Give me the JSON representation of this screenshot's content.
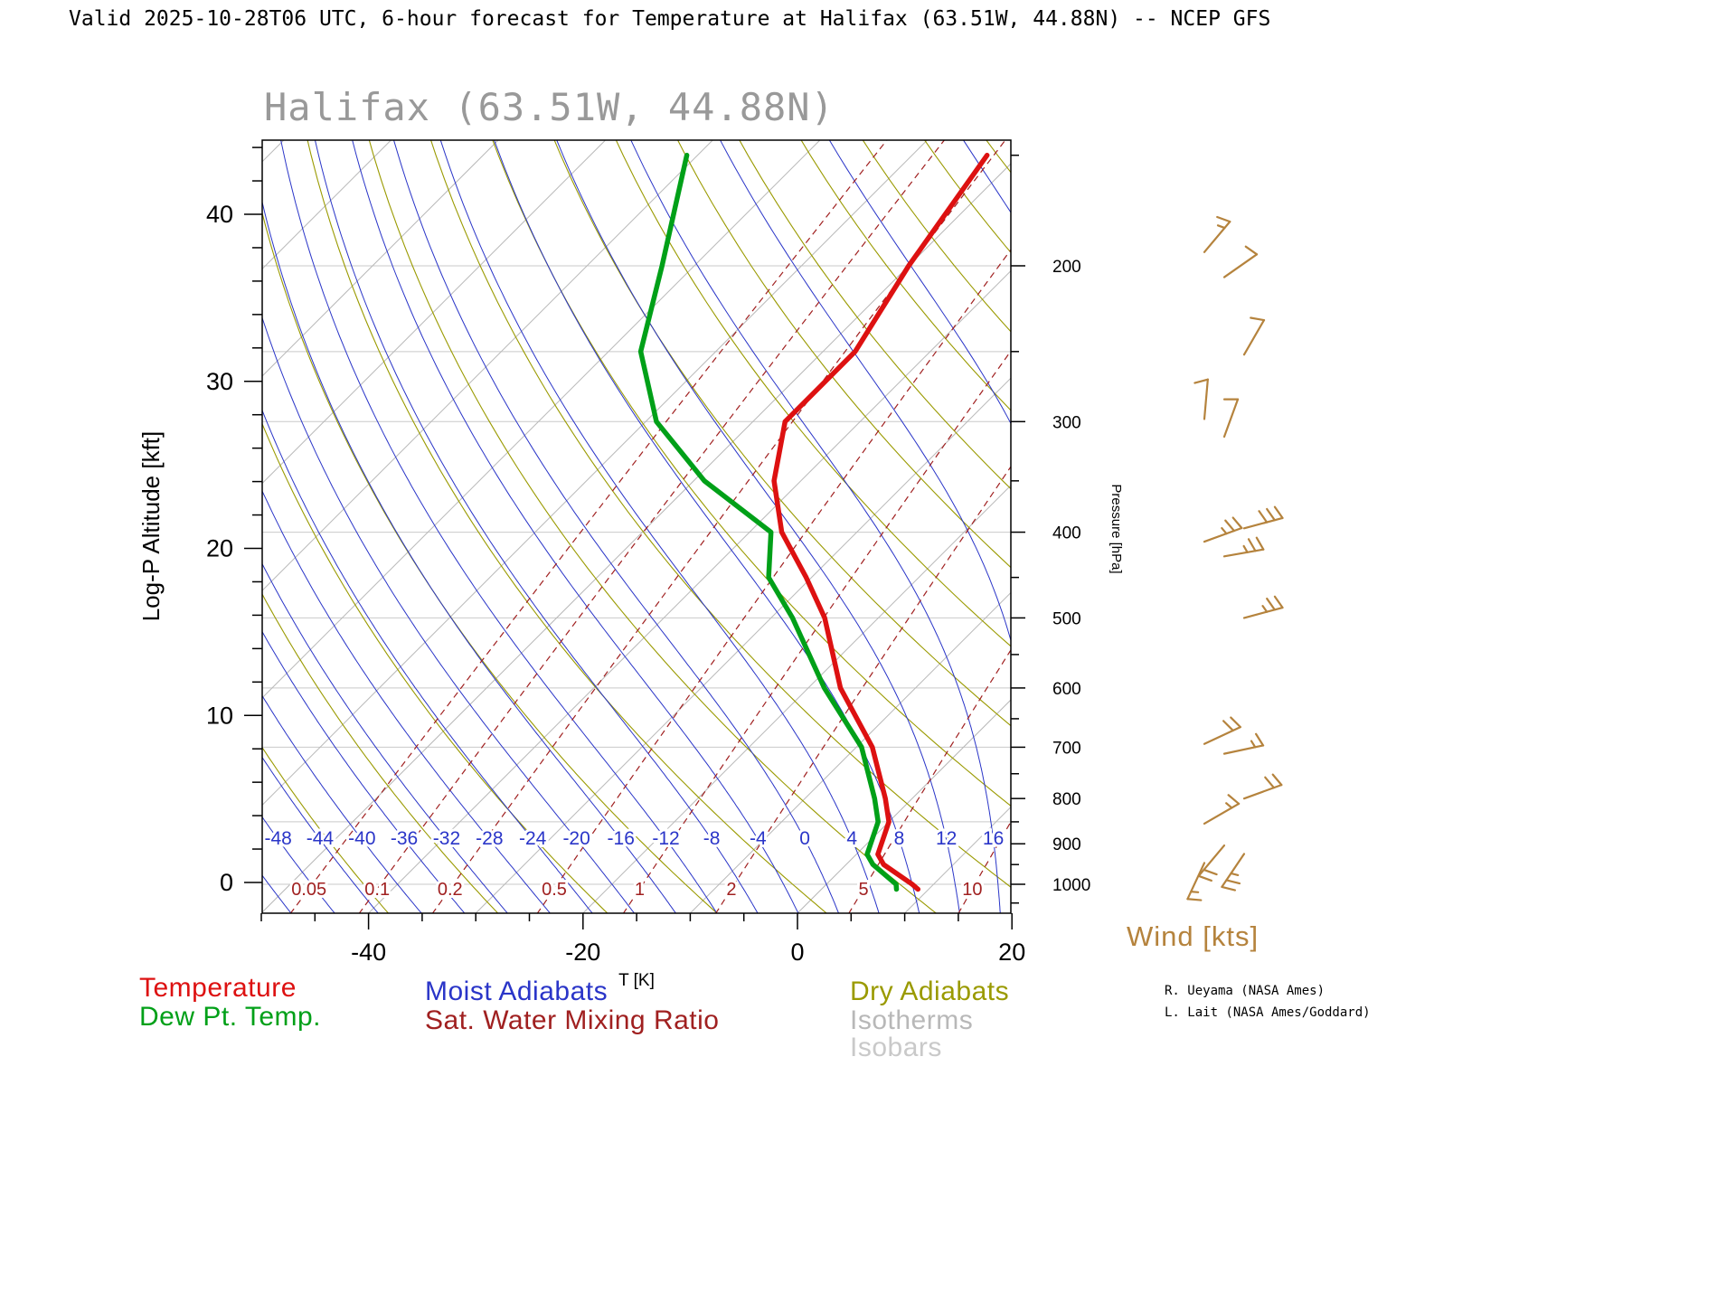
{
  "header_title": "Valid 2025-10-28T06 UTC, 6-hour forecast for Temperature at Halifax (63.51W, 44.88N) -- NCEP GFS",
  "chart_title": "Halifax (63.51W, 44.88N)",
  "axes": {
    "left_label": "Log-P Altitude [kft]",
    "left_ticks_kft": [
      0,
      10,
      20,
      30,
      40
    ],
    "right_label": "Pressure [hPa]",
    "right_ticks_hpa": [
      200,
      300,
      400,
      500,
      600,
      700,
      800,
      900,
      1000
    ],
    "bottom_label": "T [K]",
    "bottom_ticks": [
      -40,
      -20,
      0,
      20
    ]
  },
  "legend": {
    "temperature": "Temperature",
    "dew_point": "Dew Pt. Temp.",
    "moist_adiabats": "Moist Adiabats",
    "sat_water_mixing_ratio": "Sat. Water Mixing Ratio",
    "dry_adiabats": "Dry Adiabats",
    "isotherms": "Isotherms",
    "isobars": "Isobars"
  },
  "wind_title": "Wind [kts]",
  "credits": {
    "line1": "R. Ueyama (NASA Ames)",
    "line2": "L. Lait (NASA Ames/Goddard)"
  },
  "colors": {
    "temperature": "#dd1111",
    "dew_point": "#00a018",
    "moist_adiabat": "#2a35c8",
    "mixing_ratio": "#a02020",
    "dry_adiabat": "#9a9a00",
    "isotherm": "#b8b8b8",
    "isobar": "#c9c9c9",
    "wind_barb": "#b5833d",
    "title_gray": "#999999",
    "axis_black": "#000000"
  },
  "chart_data": {
    "type": "line",
    "title": "Halifax (63.51W, 44.88N)",
    "subtitle": "Skew-T / Log-P sounding, 6-hour GFS forecast valid 2025-10-28T06 UTC",
    "x_axis": {
      "label": "T [K]",
      "ticks": [
        -40,
        -20,
        0,
        20
      ],
      "surface_range_c": [
        -50,
        20
      ]
    },
    "y_axis_left": {
      "label": "Log-P Altitude [kft]",
      "ticks": [
        0,
        10,
        20,
        30,
        40
      ],
      "range_kft": [
        -1.8,
        44.4
      ]
    },
    "y_axis_right": {
      "label": "Pressure [hPa]",
      "ticks": [
        200,
        300,
        400,
        500,
        600,
        700,
        800,
        900,
        1000
      ],
      "range_hpa": [
        145,
        1078
      ],
      "scale": "log"
    },
    "isobar_lines_hpa": [
      1000,
      850,
      700,
      600,
      500,
      400,
      300,
      250,
      200
    ],
    "isotherm_interval_c": 10,
    "dry_adiabat_interval_k": 10,
    "moist_adiabat_labels_c": [
      -48,
      -44,
      -40,
      -36,
      -32,
      -28,
      -24,
      -20,
      -16,
      -12,
      -8,
      -4,
      0,
      4,
      8,
      12,
      16
    ],
    "mixing_ratio_labels_gkg": [
      0.05,
      0.1,
      0.2,
      0.5,
      1,
      2,
      5,
      10
    ],
    "series": [
      {
        "name": "Temperature",
        "units": "degC",
        "points_p_t": [
          [
            1013,
            9
          ],
          [
            1000,
            8
          ],
          [
            950,
            3.5
          ],
          [
            925,
            2
          ],
          [
            850,
            0
          ],
          [
            800,
            -2.5
          ],
          [
            700,
            -8.5
          ],
          [
            600,
            -17
          ],
          [
            500,
            -25
          ],
          [
            450,
            -30.5
          ],
          [
            400,
            -37
          ],
          [
            350,
            -42.5
          ],
          [
            300,
            -47
          ],
          [
            250,
            -47
          ],
          [
            200,
            -50
          ],
          [
            150,
            -53
          ]
        ]
      },
      {
        "name": "Dew Pt. Temp.",
        "units": "degC",
        "points_p_t": [
          [
            1013,
            7
          ],
          [
            1000,
            6.5
          ],
          [
            950,
            2.5
          ],
          [
            925,
            1
          ],
          [
            850,
            -1
          ],
          [
            800,
            -3.5
          ],
          [
            700,
            -9.5
          ],
          [
            600,
            -18.5
          ],
          [
            500,
            -28
          ],
          [
            450,
            -34
          ],
          [
            400,
            -38
          ],
          [
            350,
            -49
          ],
          [
            300,
            -59
          ],
          [
            250,
            -67
          ],
          [
            200,
            -73
          ],
          [
            150,
            -81
          ]
        ]
      }
    ],
    "winds_estimated": [
      {
        "p": 193,
        "kts": 15,
        "dir_from_deg": 40
      },
      {
        "p": 206,
        "kts": 10,
        "dir_from_deg": 55
      },
      {
        "p": 252,
        "kts": 10,
        "dir_from_deg": 30
      },
      {
        "p": 298,
        "kts": 10,
        "dir_from_deg": 5
      },
      {
        "p": 312,
        "kts": 10,
        "dir_from_deg": 20
      },
      {
        "p": 396,
        "kts": 30,
        "dir_from_deg": 75
      },
      {
        "p": 410,
        "kts": 25,
        "dir_from_deg": 70
      },
      {
        "p": 426,
        "kts": 25,
        "dir_from_deg": 80
      },
      {
        "p": 500,
        "kts": 25,
        "dir_from_deg": 75
      },
      {
        "p": 694,
        "kts": 20,
        "dir_from_deg": 65
      },
      {
        "p": 712,
        "kts": 15,
        "dir_from_deg": 78
      },
      {
        "p": 800,
        "kts": 20,
        "dir_from_deg": 70
      },
      {
        "p": 854,
        "kts": 15,
        "dir_from_deg": 60
      },
      {
        "p": 904,
        "kts": 20,
        "dir_from_deg": 220
      },
      {
        "p": 924,
        "kts": 25,
        "dir_from_deg": 214
      },
      {
        "p": 946,
        "kts": 15,
        "dir_from_deg": 205
      }
    ]
  }
}
